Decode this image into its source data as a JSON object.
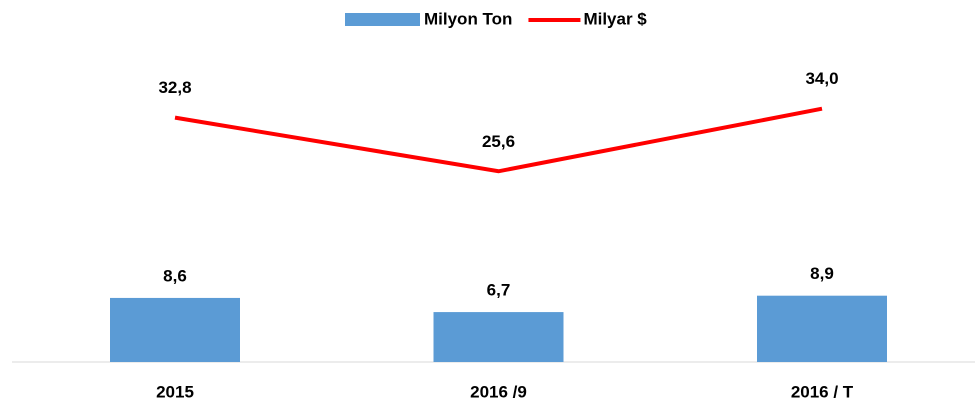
{
  "chart_data": {
    "type": "bar_line",
    "categories": [
      "2015",
      "2016 /9",
      "2016 / T"
    ],
    "series": [
      {
        "name": "Milyon Ton",
        "type": "bar",
        "color": "#5b9bd5",
        "values": [
          8.6,
          6.7,
          8.9
        ],
        "value_labels": [
          "8,6",
          "6,7",
          "8,9"
        ]
      },
      {
        "name": "Milyar $",
        "type": "line",
        "color": "#ff0000",
        "values": [
          32.8,
          25.6,
          34.0
        ],
        "value_labels": [
          "32,8",
          "25,6",
          "34,0"
        ]
      }
    ],
    "ylim": [
      0,
      40
    ],
    "legend": "top"
  }
}
